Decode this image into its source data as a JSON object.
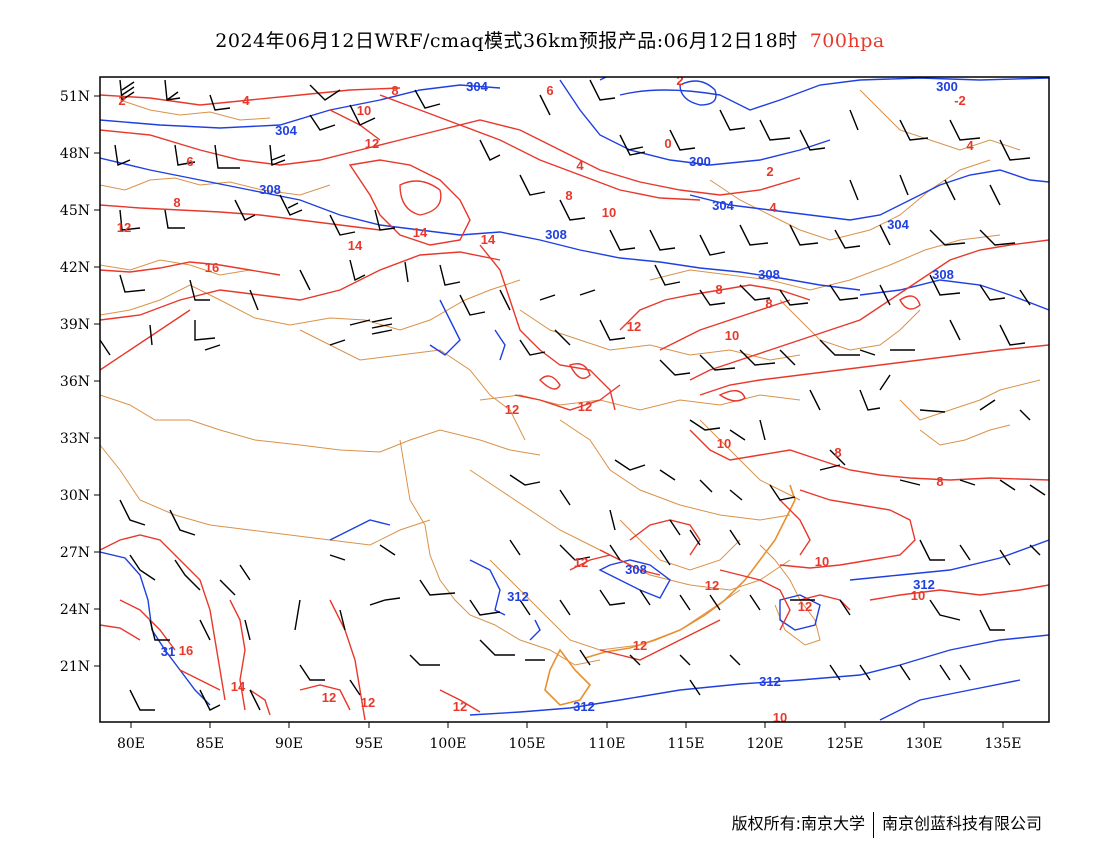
{
  "title": {
    "main": "2024年06月12日WRF/cmaq模式36km预报产品:06月12日18时",
    "level": "700hpa"
  },
  "colors": {
    "temperature_contour": "#e8382c",
    "height_contour": "#1f3fe0",
    "province_border": "#d9924a",
    "wind_barb": "#000000",
    "level_text": "#e8382c"
  },
  "axes": {
    "x_ticks": [
      "80E",
      "85E",
      "90E",
      "95E",
      "100E",
      "105E",
      "110E",
      "115E",
      "120E",
      "125E",
      "130E",
      "135E"
    ],
    "y_ticks": [
      "51N",
      "48N",
      "45N",
      "42N",
      "39N",
      "36N",
      "33N",
      "30N",
      "27N",
      "24N",
      "21N"
    ]
  },
  "contour_labels": {
    "height": [
      "304",
      "304",
      "308",
      "300",
      "300",
      "304",
      "304",
      "308",
      "308",
      "308",
      "312",
      "312",
      "312",
      "308",
      "312",
      "31"
    ],
    "temperature": [
      "2",
      "4",
      "6",
      "8",
      "10",
      "12",
      "8",
      "6",
      "2",
      "0",
      "4",
      "8",
      "10",
      "4",
      "2",
      "4",
      "-2",
      "14",
      "14",
      "16",
      "14",
      "8",
      "8",
      "10",
      "12",
      "12",
      "12",
      "10",
      "8",
      "8",
      "10",
      "10",
      "12",
      "12",
      "12",
      "12",
      "12",
      "12",
      "14",
      "16",
      "12",
      "10",
      "12"
    ]
  },
  "footer": {
    "left": "版权所有:南京大学",
    "right": "南京创蓝科技有限公司"
  }
}
